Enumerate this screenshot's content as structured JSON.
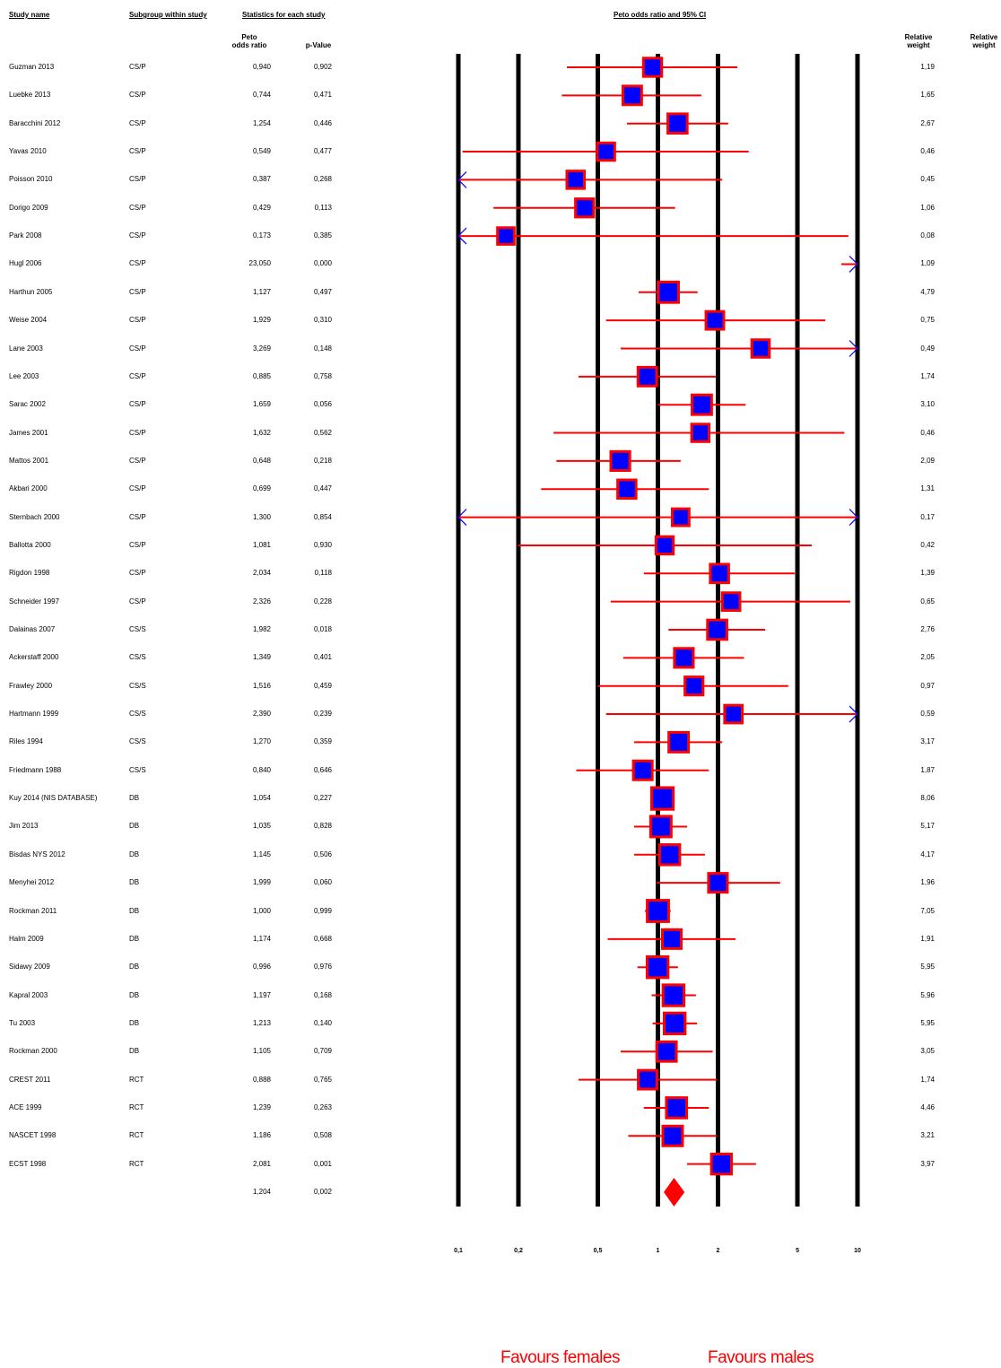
{
  "headers": {
    "study_name": "Study name",
    "subgroup": "Subgroup within study",
    "statistics": "Statistics for each study",
    "plot_title": "Peto odds ratio and 95% CI",
    "peto_or": "Peto\nodds ratio",
    "p_value": "p-Value",
    "relative_weight": "Relative\nweight",
    "relative_weight_2": "Relative\nweight"
  },
  "favours": {
    "left": "Favours females",
    "right": "Favours males"
  },
  "colors": {
    "box_fill": "#0000ff",
    "box_border": "#ff0000",
    "ci_line": "#ff0000",
    "arrow": "#0000ff",
    "axis_line": "#000000",
    "diamond": "#ff0000"
  },
  "chart_data": {
    "type": "forest",
    "xscale": "log",
    "xlim": [
      0.1,
      10
    ],
    "ticks": [
      0.1,
      0.2,
      0.5,
      1,
      2,
      5,
      10
    ],
    "tick_labels": [
      "0,1",
      "0,2",
      "0,5",
      "1",
      "2",
      "5",
      "10"
    ],
    "studies": [
      {
        "name": "Guzman 2013",
        "subgroup": "CS/P",
        "or": 0.94,
        "or_label": "0,940",
        "p": "0,902",
        "ci": [
          0.35,
          2.5
        ],
        "weight": "1,19"
      },
      {
        "name": "Luebke 2013",
        "subgroup": "CS/P",
        "or": 0.744,
        "or_label": "0,744",
        "p": "0,471",
        "ci": [
          0.33,
          1.65
        ],
        "weight": "1,65"
      },
      {
        "name": "Baracchini 2012",
        "subgroup": "CS/P",
        "or": 1.254,
        "or_label": "1,254",
        "p": "0,446",
        "ci": [
          0.7,
          2.25
        ],
        "weight": "2,67"
      },
      {
        "name": "Yavas 2010",
        "subgroup": "CS/P",
        "or": 0.549,
        "or_label": "0,549",
        "p": "0,477",
        "ci": [
          0.105,
          2.85
        ],
        "weight": "0,46"
      },
      {
        "name": "Poisson 2010",
        "subgroup": "CS/P",
        "or": 0.387,
        "or_label": "0,387",
        "p": "0,268",
        "ci": [
          0.1,
          2.1
        ],
        "arrow_left": true,
        "weight": "0,45"
      },
      {
        "name": "Dorigo 2009",
        "subgroup": "CS/P",
        "or": 0.429,
        "or_label": "0,429",
        "p": "0,113",
        "ci": [
          0.15,
          1.22
        ],
        "weight": "1,06"
      },
      {
        "name": "Park 2008",
        "subgroup": "CS/P",
        "or": 0.173,
        "or_label": "0,173",
        "p": "0,385",
        "ci": [
          0.1,
          9.0
        ],
        "arrow_left": true,
        "weight": "0,08"
      },
      {
        "name": "Hugl 2006",
        "subgroup": "CS/P",
        "or": 23.05,
        "or_label": "23,050",
        "p": "0,000",
        "ci": [
          8.3,
          10
        ],
        "arrow_right": true,
        "weight": "1,09"
      },
      {
        "name": "Harthun 2005",
        "subgroup": "CS/P",
        "or": 1.127,
        "or_label": "1,127",
        "p": "0,497",
        "ci": [
          0.8,
          1.58
        ],
        "weight": "4,79"
      },
      {
        "name": "Weise 2004",
        "subgroup": "CS/P",
        "or": 1.929,
        "or_label": "1,929",
        "p": "0,310",
        "ci": [
          0.55,
          6.9
        ],
        "weight": "0,75"
      },
      {
        "name": "Lane 2003",
        "subgroup": "CS/P",
        "or": 3.269,
        "or_label": "3,269",
        "p": "0,148",
        "ci": [
          0.65,
          10
        ],
        "arrow_right": true,
        "weight": "0,49"
      },
      {
        "name": "Lee 2003",
        "subgroup": "CS/P",
        "or": 0.885,
        "or_label": "0,885",
        "p": "0,758",
        "ci": [
          0.4,
          1.95
        ],
        "weight": "1,74"
      },
      {
        "name": "Sarac 2002",
        "subgroup": "CS/P",
        "or": 1.659,
        "or_label": "1,659",
        "p": "0,056",
        "ci": [
          1.0,
          2.75
        ],
        "weight": "3,10"
      },
      {
        "name": "James 2001",
        "subgroup": "CS/P",
        "or": 1.632,
        "or_label": "1,632",
        "p": "0,562",
        "ci": [
          0.3,
          8.6
        ],
        "weight": "0,46"
      },
      {
        "name": "Mattos 2001",
        "subgroup": "CS/P",
        "or": 0.648,
        "or_label": "0,648",
        "p": "0,218",
        "ci": [
          0.31,
          1.3
        ],
        "weight": "2,09"
      },
      {
        "name": "Akbari 2000",
        "subgroup": "CS/P",
        "or": 0.699,
        "or_label": "0,699",
        "p": "0,447",
        "ci": [
          0.26,
          1.8
        ],
        "weight": "1,31"
      },
      {
        "name": "Sternbach 2000",
        "subgroup": "CS/P",
        "or": 1.3,
        "or_label": "1,300",
        "p": "0,854",
        "ci": [
          0.1,
          10
        ],
        "arrow_left": true,
        "arrow_right": true,
        "weight": "0,17"
      },
      {
        "name": "Ballotta 2000",
        "subgroup": "CS/P",
        "or": 1.081,
        "or_label": "1,081",
        "p": "0,930",
        "ci": [
          0.2,
          5.9
        ],
        "weight": "0,42"
      },
      {
        "name": "Rigdon 1998",
        "subgroup": "CS/P",
        "or": 2.034,
        "or_label": "2,034",
        "p": "0,118",
        "ci": [
          0.85,
          4.85
        ],
        "weight": "1,39"
      },
      {
        "name": "Schneider 1997",
        "subgroup": "CS/P",
        "or": 2.326,
        "or_label": "2,326",
        "p": "0,228",
        "ci": [
          0.58,
          9.2
        ],
        "weight": "0,65"
      },
      {
        "name": "Dalainas 2007",
        "subgroup": "CS/S",
        "or": 1.982,
        "or_label": "1,982",
        "p": "0,018",
        "ci": [
          1.13,
          3.45
        ],
        "weight": "2,76"
      },
      {
        "name": "Ackerstaff 2000",
        "subgroup": "CS/S",
        "or": 1.349,
        "or_label": "1,349",
        "p": "0,401",
        "ci": [
          0.67,
          2.7
        ],
        "weight": "2,05"
      },
      {
        "name": "Frawley 2000",
        "subgroup": "CS/S",
        "or": 1.516,
        "or_label": "1,516",
        "p": "0,459",
        "ci": [
          0.5,
          4.5
        ],
        "weight": "0,97"
      },
      {
        "name": "Hartmann 1999",
        "subgroup": "CS/S",
        "or": 2.39,
        "or_label": "2,390",
        "p": "0,239",
        "ci": [
          0.55,
          10
        ],
        "arrow_right": true,
        "weight": "0,59"
      },
      {
        "name": "Riles 1994",
        "subgroup": "CS/S",
        "or": 1.27,
        "or_label": "1,270",
        "p": "0,359",
        "ci": [
          0.76,
          2.1
        ],
        "weight": "3,17"
      },
      {
        "name": "Friedmann 1988",
        "subgroup": "CS/S",
        "or": 0.84,
        "or_label": "0,840",
        "p": "0,646",
        "ci": [
          0.39,
          1.8
        ],
        "weight": "1,87"
      },
      {
        "name": "Kuy 2014 (NIS DATABASE)",
        "subgroup": "DB",
        "or": 1.054,
        "or_label": "1,054",
        "p": "0,227",
        "ci": [
          0.97,
          1.15
        ],
        "weight": "8,06"
      },
      {
        "name": "Jim 2013",
        "subgroup": "DB",
        "or": 1.035,
        "or_label": "1,035",
        "p": "0,828",
        "ci": [
          0.76,
          1.4
        ],
        "weight": "5,17"
      },
      {
        "name": "Bisdas NYS 2012",
        "subgroup": "DB",
        "or": 1.145,
        "or_label": "1,145",
        "p": "0,506",
        "ci": [
          0.76,
          1.72
        ],
        "weight": "4,17"
      },
      {
        "name": "Menyhei 2012",
        "subgroup": "DB",
        "or": 1.999,
        "or_label": "1,999",
        "p": "0,060",
        "ci": [
          0.98,
          4.1
        ],
        "weight": "1,96"
      },
      {
        "name": "Rockman 2011",
        "subgroup": "DB",
        "or": 1.0,
        "or_label": "1,000",
        "p": "0,999",
        "ci": [
          0.86,
          1.16
        ],
        "weight": "7,05"
      },
      {
        "name": "Halm 2009",
        "subgroup": "DB",
        "or": 1.174,
        "or_label": "1,174",
        "p": "0,668",
        "ci": [
          0.56,
          2.45
        ],
        "weight": "1,91"
      },
      {
        "name": "Sidawy 2009",
        "subgroup": "DB",
        "or": 0.996,
        "or_label": "0,996",
        "p": "0,976",
        "ci": [
          0.79,
          1.26
        ],
        "weight": "5,95"
      },
      {
        "name": "Kapral 2003",
        "subgroup": "DB",
        "or": 1.197,
        "or_label": "1,197",
        "p": "0,168",
        "ci": [
          0.93,
          1.55
        ],
        "weight": "5,96"
      },
      {
        "name": "Tu 2003",
        "subgroup": "DB",
        "or": 1.213,
        "or_label": "1,213",
        "p": "0,140",
        "ci": [
          0.94,
          1.57
        ],
        "weight": "5,95"
      },
      {
        "name": "Rockman 2000",
        "subgroup": "DB",
        "or": 1.105,
        "or_label": "1,105",
        "p": "0,709",
        "ci": [
          0.65,
          1.88
        ],
        "weight": "3,05"
      },
      {
        "name": "CREST 2011",
        "subgroup": "RCT",
        "or": 0.888,
        "or_label": "0,888",
        "p": "0,765",
        "ci": [
          0.4,
          1.98
        ],
        "weight": "1,74"
      },
      {
        "name": "ACE 1999",
        "subgroup": "RCT",
        "or": 1.239,
        "or_label": "1,239",
        "p": "0,263",
        "ci": [
          0.85,
          1.8
        ],
        "weight": "4,46"
      },
      {
        "name": "NASCET 1998",
        "subgroup": "RCT",
        "or": 1.186,
        "or_label": "1,186",
        "p": "0,508",
        "ci": [
          0.71,
          1.98
        ],
        "weight": "3,21"
      },
      {
        "name": "ECST 1998",
        "subgroup": "RCT",
        "or": 2.081,
        "or_label": "2,081",
        "p": "0,001",
        "ci": [
          1.4,
          3.1
        ],
        "weight": "3,97"
      }
    ],
    "summary": {
      "or": 1.204,
      "or_label": "1,204",
      "p": "0,002",
      "ci": [
        1.07,
        1.36
      ]
    }
  }
}
